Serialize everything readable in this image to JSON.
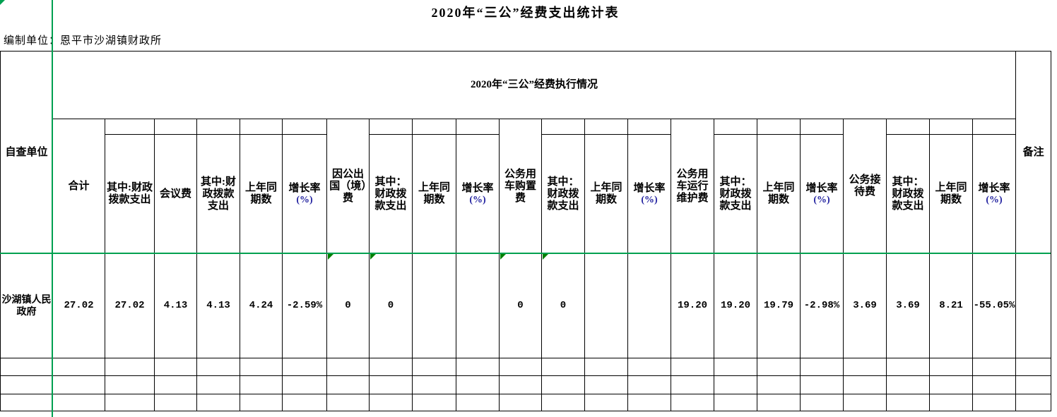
{
  "title": "2020年“三公”经费支出统计表",
  "prep": {
    "label": "编制单位：",
    "value": "恩平市沙湖镇财政所"
  },
  "header": {
    "unit_column": "自查单位",
    "span_header": "2020年“三公”经费执行情况",
    "remark_column": "备注",
    "groups": [
      "合计",
      "因公出国（境）费",
      "公务用车购置费",
      "公务用车运行维护费",
      "公务接待费"
    ],
    "subs": [
      "其中:财政拨款支出",
      "会议费",
      "其中:财政拨款支出",
      "上年同期数",
      "增长率",
      "其中：财政拨款支出",
      "上年同期数",
      "增长率",
      "其中：财政拨款支出",
      "上年同期数",
      "增长率",
      "其中：财政拨款支出",
      "上年同期数",
      "增长率",
      "其中：财政拨款支出",
      "上年同期数",
      "增长率"
    ],
    "rate_suffix": "(%)"
  },
  "row": {
    "unit": "沙湖镇人民政府",
    "values": [
      "27.02",
      "27.02",
      "4.13",
      "4.13",
      "4.24",
      "-2.59%",
      "0",
      "0",
      "",
      "",
      "0",
      "0",
      "",
      "",
      "19.20",
      "19.20",
      "19.79",
      "-2.98%",
      "3.69",
      "3.69",
      "8.21",
      "-55.05%",
      ""
    ]
  },
  "empty_row_count": 3,
  "colors": {
    "selection_green": "#00a050",
    "marker_green": "#008000",
    "rate_percent_blue": "#2222a0",
    "grid_black": "#000000"
  }
}
